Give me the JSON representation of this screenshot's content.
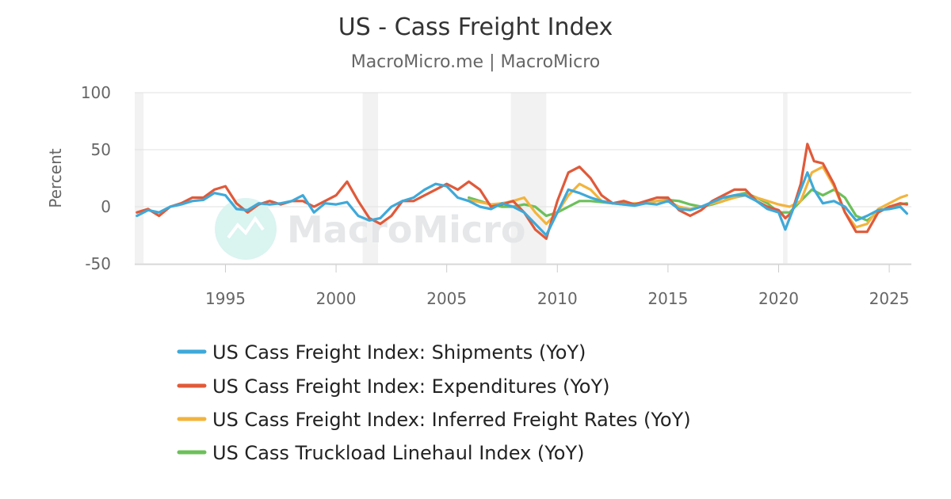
{
  "chart_data": {
    "type": "line",
    "title": "US - Cass Freight Index",
    "subtitle": "MacroMicro.me | MacroMicro",
    "ylabel": "Percent",
    "xlabel": "",
    "ylim": [
      -50,
      100
    ],
    "xlim": [
      1990.9,
      2026.0
    ],
    "yticks": [
      "100",
      "50",
      "0",
      "-50"
    ],
    "ytick_values": [
      100,
      50,
      0,
      -50
    ],
    "xticks": [
      "1995",
      "2000",
      "2005",
      "2010",
      "2015",
      "2020",
      "2025"
    ],
    "xtick_values": [
      1995,
      2000,
      2005,
      2010,
      2015,
      2020,
      2025
    ],
    "grid": true,
    "legend_position": "bottom",
    "watermark": "MacroMicro",
    "recessions": [
      [
        1990.9,
        1991.3
      ],
      [
        2001.2,
        2001.9
      ],
      [
        2007.9,
        2009.5
      ],
      [
        2020.2,
        2020.4
      ]
    ],
    "series": [
      {
        "name": "US Cass Freight Index: Shipments (YoY)",
        "color": "#3ea9d9",
        "x": [
          1991.0,
          1991.5,
          1992.0,
          1992.5,
          1993.0,
          1993.5,
          1994.0,
          1994.5,
          1995.0,
          1995.5,
          1996.0,
          1996.5,
          1997.0,
          1997.5,
          1998.0,
          1998.5,
          1999.0,
          1999.5,
          2000.0,
          2000.5,
          2001.0,
          2001.5,
          2002.0,
          2002.5,
          2003.0,
          2003.5,
          2004.0,
          2004.5,
          2005.0,
          2005.5,
          2006.0,
          2006.5,
          2007.0,
          2007.5,
          2008.0,
          2008.5,
          2009.0,
          2009.5,
          2010.0,
          2010.5,
          2011.0,
          2011.5,
          2012.0,
          2012.5,
          2013.0,
          2013.5,
          2014.0,
          2014.5,
          2015.0,
          2015.5,
          2016.0,
          2016.5,
          2017.0,
          2017.5,
          2018.0,
          2018.5,
          2019.0,
          2019.5,
          2020.0,
          2020.3,
          2020.6,
          2021.0,
          2021.3,
          2021.6,
          2022.0,
          2022.5,
          2023.0,
          2023.5,
          2024.0,
          2024.5,
          2025.0,
          2025.5,
          2025.8
        ],
        "y": [
          -8,
          -3,
          -5,
          0,
          2,
          5,
          6,
          12,
          10,
          -2,
          -3,
          3,
          2,
          3,
          5,
          10,
          -5,
          3,
          2,
          4,
          -8,
          -12,
          -10,
          0,
          5,
          8,
          15,
          20,
          18,
          8,
          5,
          0,
          -2,
          3,
          0,
          -5,
          -15,
          -25,
          -5,
          15,
          12,
          8,
          5,
          3,
          2,
          1,
          3,
          2,
          5,
          -2,
          -3,
          0,
          4,
          8,
          10,
          10,
          5,
          -2,
          -5,
          -20,
          -5,
          15,
          30,
          15,
          3,
          5,
          0,
          -12,
          -8,
          -3,
          -2,
          0,
          -6
        ]
      },
      {
        "name": "US Cass Freight Index: Expenditures (YoY)",
        "color": "#e05a3a",
        "x": [
          1991.0,
          1991.5,
          1992.0,
          1992.5,
          1993.0,
          1993.5,
          1994.0,
          1994.5,
          1995.0,
          1995.5,
          1996.0,
          1996.5,
          1997.0,
          1997.5,
          1998.0,
          1998.5,
          1999.0,
          1999.5,
          2000.0,
          2000.5,
          2001.0,
          2001.5,
          2002.0,
          2002.5,
          2003.0,
          2003.5,
          2004.0,
          2004.5,
          2005.0,
          2005.5,
          2006.0,
          2006.5,
          2007.0,
          2007.5,
          2008.0,
          2008.5,
          2009.0,
          2009.5,
          2010.0,
          2010.5,
          2011.0,
          2011.5,
          2012.0,
          2012.5,
          2013.0,
          2013.5,
          2014.0,
          2014.5,
          2015.0,
          2015.5,
          2016.0,
          2016.5,
          2017.0,
          2017.5,
          2018.0,
          2018.5,
          2019.0,
          2019.5,
          2020.0,
          2020.3,
          2020.6,
          2021.0,
          2021.3,
          2021.6,
          2022.0,
          2022.5,
          2023.0,
          2023.5,
          2024.0,
          2024.5,
          2025.0,
          2025.5,
          2025.8
        ],
        "y": [
          -5,
          -2,
          -8,
          0,
          3,
          8,
          8,
          15,
          18,
          3,
          -5,
          2,
          5,
          2,
          5,
          5,
          0,
          5,
          10,
          22,
          5,
          -10,
          -15,
          -8,
          5,
          5,
          10,
          15,
          20,
          15,
          22,
          15,
          0,
          2,
          5,
          -5,
          -20,
          -28,
          5,
          30,
          35,
          25,
          10,
          3,
          5,
          2,
          5,
          8,
          8,
          -3,
          -8,
          -3,
          5,
          10,
          15,
          15,
          5,
          0,
          -3,
          -10,
          -5,
          20,
          55,
          40,
          38,
          20,
          -5,
          -22,
          -22,
          -5,
          0,
          3,
          2
        ]
      },
      {
        "name": "US Cass Freight Index: Inferred Freight Rates (YoY)",
        "color": "#f2b43c",
        "x": [
          2006.0,
          2006.5,
          2007.0,
          2007.5,
          2008.0,
          2008.5,
          2009.0,
          2009.5,
          2010.0,
          2010.5,
          2011.0,
          2011.5,
          2012.0,
          2012.5,
          2013.0,
          2013.5,
          2014.0,
          2014.5,
          2015.0,
          2015.5,
          2016.0,
          2016.5,
          2017.0,
          2017.5,
          2018.0,
          2018.5,
          2019.0,
          2019.5,
          2020.0,
          2020.5,
          2021.0,
          2021.5,
          2022.0,
          2022.5,
          2023.0,
          2023.5,
          2024.0,
          2024.5,
          2025.0,
          2025.5,
          2025.8
        ],
        "y": [
          6,
          4,
          2,
          3,
          5,
          8,
          -5,
          -15,
          -5,
          10,
          20,
          15,
          5,
          3,
          2,
          3,
          3,
          5,
          5,
          0,
          -2,
          0,
          3,
          5,
          8,
          10,
          8,
          5,
          2,
          0,
          5,
          30,
          35,
          18,
          -5,
          -18,
          -15,
          -2,
          3,
          8,
          10
        ]
      },
      {
        "name": "US Cass Truckload Linehaul Index (YoY)",
        "color": "#6cc05a",
        "x": [
          2006.0,
          2006.5,
          2007.0,
          2007.5,
          2008.0,
          2008.5,
          2009.0,
          2009.5,
          2010.0,
          2010.5,
          2011.0,
          2011.5,
          2012.0,
          2012.5,
          2013.0,
          2013.5,
          2014.0,
          2014.5,
          2015.0,
          2015.5,
          2016.0,
          2016.5,
          2017.0,
          2017.5,
          2018.0,
          2018.5,
          2019.0,
          2019.5,
          2020.0,
          2020.5,
          2021.0,
          2021.5,
          2022.0,
          2022.5,
          2023.0,
          2023.5,
          2024.0,
          2024.5,
          2025.0,
          2025.5,
          2025.8
        ],
        "y": [
          8,
          5,
          2,
          0,
          0,
          2,
          0,
          -8,
          -5,
          0,
          5,
          5,
          4,
          3,
          3,
          2,
          4,
          5,
          6,
          5,
          2,
          0,
          2,
          5,
          10,
          12,
          8,
          3,
          -5,
          -5,
          5,
          15,
          10,
          15,
          8,
          -8,
          -12,
          -5,
          0,
          2,
          3
        ]
      }
    ]
  }
}
